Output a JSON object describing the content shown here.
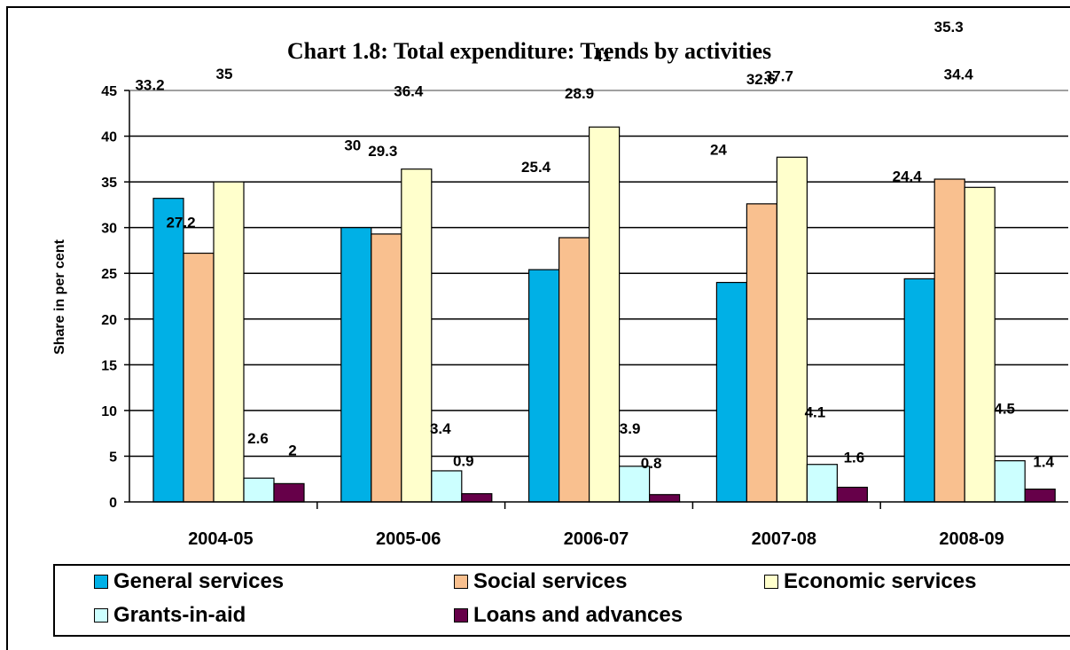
{
  "chart_data": {
    "type": "bar",
    "title": "Chart 1.8: Total expenditure: Trends by activities",
    "ylabel": "Share in per cent",
    "xlabel": "",
    "categories": [
      "2004-05",
      "2005-06",
      "2006-07",
      "2007-08",
      "2008-09"
    ],
    "ylim": [
      0,
      45
    ],
    "yticks": [
      0,
      5,
      10,
      15,
      20,
      25,
      30,
      35,
      40,
      45
    ],
    "grid": true,
    "legend_position": "bottom",
    "series": [
      {
        "name": "General services",
        "color": "#00B0E6",
        "values": [
          33.2,
          30,
          25.4,
          24,
          24.4
        ]
      },
      {
        "name": "Social services",
        "color": "#F9C08F",
        "values": [
          27.2,
          29.3,
          28.9,
          32.6,
          35.3
        ]
      },
      {
        "name": "Economic services",
        "color": "#FFFFCC",
        "values": [
          35,
          36.4,
          41,
          37.7,
          34.4
        ]
      },
      {
        "name": "Grants-in-aid",
        "color": "#CCFFFF",
        "values": [
          2.6,
          3.4,
          3.9,
          4.1,
          4.5
        ]
      },
      {
        "name": "Loans and advances",
        "color": "#660049",
        "values": [
          2,
          0.9,
          0.8,
          1.6,
          1.4
        ]
      }
    ]
  }
}
